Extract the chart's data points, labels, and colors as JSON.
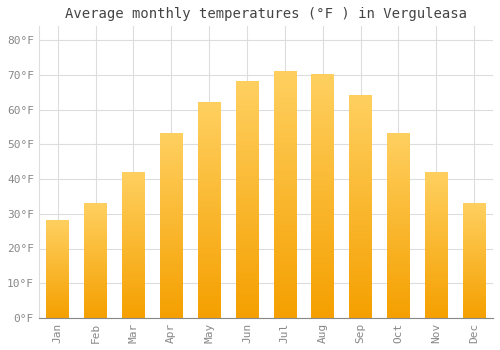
{
  "months": [
    "Jan",
    "Feb",
    "Mar",
    "Apr",
    "May",
    "Jun",
    "Jul",
    "Aug",
    "Sep",
    "Oct",
    "Nov",
    "Dec"
  ],
  "values": [
    28,
    33,
    42,
    53,
    62,
    68,
    71,
    70,
    64,
    53,
    42,
    33
  ],
  "bar_color_top": "#FFB347",
  "bar_color_bottom": "#FFA000",
  "title": "Average monthly temperatures (°F ) in Verguleasa",
  "ylim": [
    0,
    84
  ],
  "yticks": [
    0,
    10,
    20,
    30,
    40,
    50,
    60,
    70,
    80
  ],
  "ytick_labels": [
    "0°F",
    "10°F",
    "20°F",
    "30°F",
    "40°F",
    "50°F",
    "60°F",
    "70°F",
    "80°F"
  ],
  "background_color": "#ffffff",
  "plot_bg_color": "#ffffff",
  "grid_color": "#dddddd",
  "title_fontsize": 10,
  "tick_fontsize": 8,
  "tick_color": "#888888",
  "font_family": "monospace",
  "bar_width": 0.6
}
